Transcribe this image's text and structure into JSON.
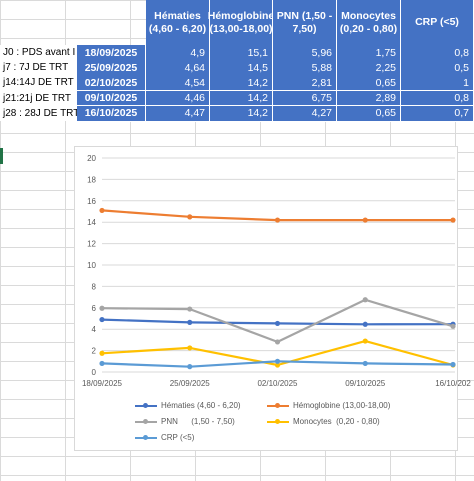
{
  "table": {
    "headers": [
      "Hématies (4,60 - 6,20)",
      "Hémoglobine (13,00-18,00)",
      "PNN (1,50 - 7,50)",
      "Monocytes (0,20 - 0,80)",
      "CRP (<5)"
    ],
    "rows": [
      {
        "label": "J0 : PDS avant I",
        "date": "18/09/2025",
        "values": [
          "4,9",
          "15,1",
          "5,96",
          "1,75",
          "0,8"
        ]
      },
      {
        "label": "j7 : 7J DE TRT",
        "date": "25/09/2025",
        "values": [
          "4,64",
          "14,5",
          "5,88",
          "2,25",
          "0,5"
        ]
      },
      {
        "label": "j14:14J DE TRT",
        "date": "02/10/2025",
        "values": [
          "4,54",
          "14,2",
          "2,81",
          "0,65",
          "1"
        ]
      },
      {
        "label": "j21:21j DE TRT",
        "date": "09/10/2025",
        "values": [
          "4,46",
          "14,2",
          "6,75",
          "2,89",
          "0,8"
        ]
      },
      {
        "label": "j28 : 28J DE TRT",
        "date": "16/10/2025",
        "values": [
          "4,47",
          "14,2",
          "4,27",
          "0,65",
          "0,7"
        ]
      }
    ]
  },
  "chart_data": {
    "type": "line",
    "x": [
      "18/09/2025",
      "25/09/2025",
      "02/10/2025",
      "09/10/2025",
      "16/10/202"
    ],
    "ylim": [
      0,
      20
    ],
    "yticks": [
      "0",
      "2",
      "4",
      "6",
      "8",
      "10",
      "12",
      "14",
      "16",
      "18",
      "20"
    ],
    "grid": true,
    "legend_position": "bottom",
    "series": [
      {
        "name": "Hématies (4,60 - 6,20)",
        "color": "#4472c4",
        "values": [
          4.9,
          4.64,
          4.54,
          4.46,
          4.47
        ]
      },
      {
        "name": "Hémoglobine (13,00-18,00)",
        "color": "#ed7d31",
        "values": [
          15.1,
          14.5,
          14.2,
          14.2,
          14.2
        ]
      },
      {
        "name": "PNN      (1,50 - 7,50)",
        "color": "#a5a5a5",
        "values": [
          5.96,
          5.88,
          2.81,
          6.75,
          4.27
        ]
      },
      {
        "name": "Monocytes  (0,20 - 0,80)",
        "color": "#ffc000",
        "values": [
          1.75,
          2.25,
          0.65,
          2.89,
          0.65
        ]
      },
      {
        "name": "CRP (<5)",
        "color": "#5b9bd5",
        "values": [
          0.8,
          0.5,
          1,
          0.8,
          0.7
        ]
      }
    ]
  }
}
